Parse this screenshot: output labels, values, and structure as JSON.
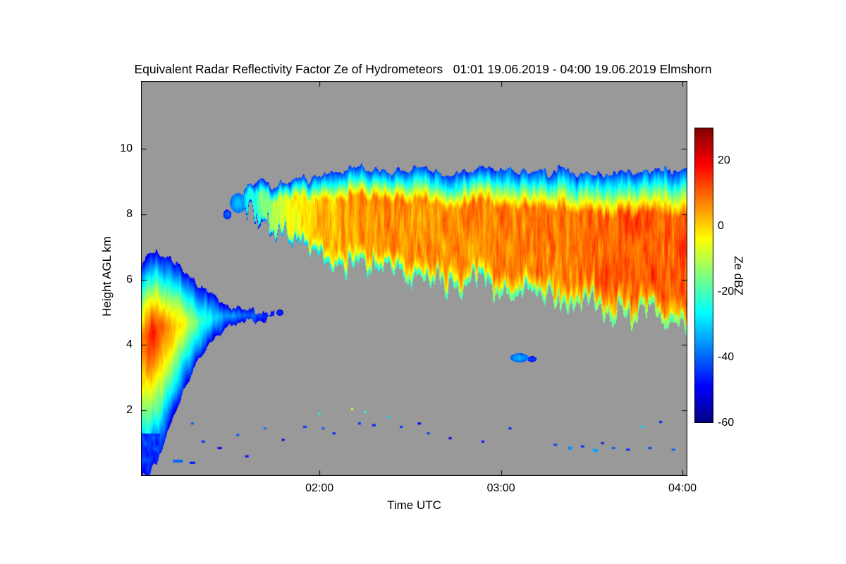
{
  "title": "Equivalent Radar Reflectivity Factor Ze of Hydrometeors   01:01 19.06.2019 - 04:00 19.06.2019 Elmshorn",
  "chart_data": {
    "type": "heatmap",
    "title": "Equivalent Radar Reflectivity Factor Ze of Hydrometeors   01:01 19.06.2019 - 04:00 19.06.2019 Elmshorn",
    "station": "Elmshorn",
    "time_start": "01:01 19.06.2019",
    "time_end": "04:00 19.06.2019",
    "xlabel": "Time UTC",
    "ylabel": "Height AGL km",
    "colorbar_label": "Ze dBZ",
    "colormap": "jet",
    "no_data_color": "#999999",
    "x_range_hours": [
      1.0167,
      4.027
    ],
    "y_range_km": [
      0,
      12.07
    ],
    "z_range_dbz": [
      -60,
      30
    ],
    "x_ticks": [
      {
        "value": 2,
        "label": "02:00"
      },
      {
        "value": 3,
        "label": "03:00"
      },
      {
        "value": 4,
        "label": "04:00"
      }
    ],
    "y_ticks": [
      {
        "value": 2,
        "label": "2"
      },
      {
        "value": 4,
        "label": "4"
      },
      {
        "value": 6,
        "label": "6"
      },
      {
        "value": 8,
        "label": "8"
      },
      {
        "value": 10,
        "label": "10"
      }
    ],
    "colorbar_ticks": [
      {
        "value": 20,
        "label": "20"
      },
      {
        "value": 0,
        "label": "0"
      },
      {
        "value": -20,
        "label": "-20"
      },
      {
        "value": -40,
        "label": "-40"
      },
      {
        "value": -60,
        "label": "-60"
      }
    ],
    "features": {
      "anvil": {
        "t": [
          1.58,
          1.66,
          1.74,
          1.82,
          1.92,
          2.02,
          2.12,
          2.25,
          2.4,
          2.55,
          2.7,
          2.85,
          3.0,
          3.15,
          3.3,
          3.45,
          3.6,
          3.75,
          3.9,
          4.03
        ],
        "top": [
          8.75,
          9.05,
          8.85,
          9.0,
          9.1,
          9.25,
          9.3,
          9.45,
          9.3,
          9.4,
          9.25,
          9.45,
          9.4,
          9.25,
          9.35,
          9.3,
          9.25,
          9.3,
          9.35,
          9.45
        ],
        "base": [
          8.1,
          7.5,
          7.2,
          7.0,
          6.8,
          6.6,
          6.5,
          6.35,
          6.2,
          6.1,
          5.95,
          5.8,
          5.6,
          5.45,
          5.3,
          5.2,
          5.05,
          4.95,
          4.8,
          4.6
        ],
        "core": [
          -30,
          -20,
          -12,
          -5,
          -2,
          2,
          4,
          5,
          7,
          6,
          7,
          6,
          7,
          7,
          8,
          9,
          10,
          11,
          11,
          12
        ]
      },
      "left_cell": {
        "t": [
          1.017,
          1.05,
          1.1,
          1.16,
          1.23,
          1.31,
          1.4,
          1.48,
          1.56,
          1.64,
          1.72
        ],
        "top": [
          6.45,
          6.7,
          6.9,
          6.75,
          6.4,
          5.9,
          5.5,
          5.25,
          5.15,
          5.05,
          4.95
        ],
        "base": [
          0.05,
          0.05,
          0.35,
          1.3,
          2.3,
          3.3,
          4.1,
          4.5,
          4.7,
          4.75,
          4.8
        ],
        "core": [
          10,
          14,
          15,
          7,
          -2,
          -16,
          -28,
          -34,
          -38,
          -42,
          -45
        ],
        "core_h": [
          4.1,
          4.3,
          4.45,
          4.55,
          4.6,
          4.7,
          4.85,
          4.9,
          4.92,
          4.9,
          4.88
        ]
      },
      "blobs": [
        [
          1.55,
          8.35,
          -32,
          0.045,
          0.3
        ],
        [
          1.49,
          8.0,
          -40,
          0.022,
          0.15
        ],
        [
          1.62,
          8.62,
          -36,
          0.02,
          0.18
        ],
        [
          3.1,
          3.62,
          -33,
          0.05,
          0.14
        ],
        [
          3.17,
          3.58,
          -42,
          0.025,
          0.09
        ],
        [
          1.78,
          5.0,
          -44,
          0.018,
          0.1
        ]
      ],
      "specks": [
        [
          1.22,
          0.45,
          -40,
          14,
          4
        ],
        [
          1.3,
          0.4,
          -47,
          8,
          3
        ],
        [
          1.36,
          1.05,
          -44,
          5,
          3
        ],
        [
          1.3,
          1.6,
          -40,
          4,
          3
        ],
        [
          1.45,
          0.85,
          -50,
          6,
          3
        ],
        [
          1.55,
          1.25,
          -42,
          4,
          3
        ],
        [
          1.6,
          0.6,
          -47,
          5,
          3
        ],
        [
          1.7,
          1.45,
          -38,
          4,
          3
        ],
        [
          1.8,
          1.1,
          -50,
          4,
          3
        ],
        [
          1.92,
          1.5,
          -44,
          5,
          3
        ],
        [
          2.0,
          1.9,
          -26,
          3,
          3
        ],
        [
          2.02,
          1.45,
          -40,
          4,
          3
        ],
        [
          2.08,
          1.3,
          -46,
          4,
          3
        ],
        [
          2.18,
          2.05,
          -8,
          3,
          3
        ],
        [
          2.22,
          1.6,
          -44,
          4,
          3
        ],
        [
          2.25,
          1.95,
          -24,
          3,
          3
        ],
        [
          2.3,
          1.55,
          -46,
          5,
          3
        ],
        [
          2.38,
          1.8,
          -30,
          3,
          3
        ],
        [
          2.45,
          1.5,
          -44,
          4,
          3
        ],
        [
          2.55,
          1.6,
          -48,
          5,
          3
        ],
        [
          2.6,
          1.3,
          -44,
          4,
          3
        ],
        [
          2.72,
          1.15,
          -50,
          4,
          3
        ],
        [
          2.9,
          1.05,
          -48,
          4,
          3
        ],
        [
          3.05,
          1.45,
          -46,
          4,
          3
        ],
        [
          3.3,
          0.95,
          -42,
          5,
          3
        ],
        [
          3.38,
          0.85,
          -36,
          6,
          4
        ],
        [
          3.45,
          0.9,
          -44,
          5,
          3
        ],
        [
          3.52,
          0.78,
          -34,
          7,
          4
        ],
        [
          3.56,
          1.0,
          -46,
          4,
          3
        ],
        [
          3.62,
          0.85,
          -40,
          5,
          3
        ],
        [
          3.7,
          0.8,
          -46,
          5,
          3
        ],
        [
          3.78,
          1.5,
          -30,
          4,
          3
        ],
        [
          3.82,
          0.85,
          -42,
          5,
          3
        ],
        [
          3.88,
          1.65,
          -46,
          4,
          3
        ],
        [
          3.95,
          0.8,
          -40,
          5,
          3
        ]
      ]
    }
  }
}
